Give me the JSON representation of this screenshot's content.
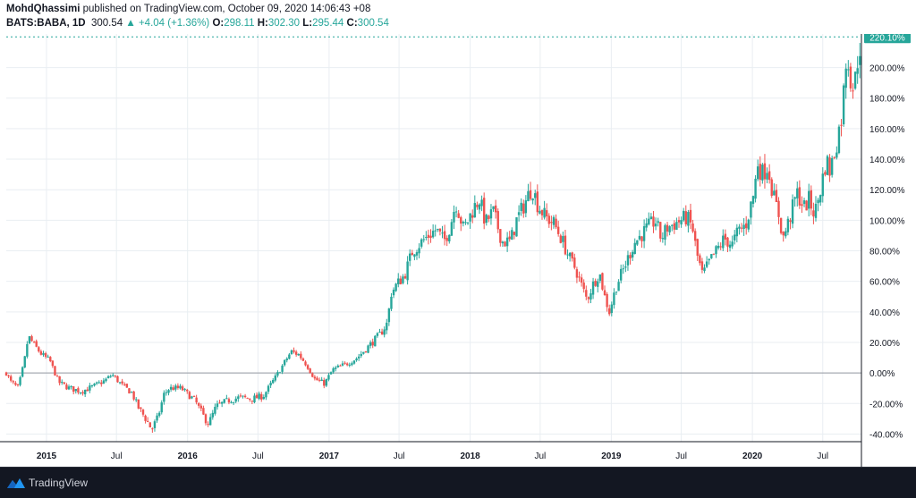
{
  "header": {
    "author": "MohdQhassimi",
    "published": "published on TradingView.com, October 09, 2020 14:06:43 +08",
    "symbol": "BATS:BABA, 1D",
    "last": "300.54",
    "change": "▲ +4.04 (+1.36%)",
    "o_label": "O:",
    "o_value": "298.11",
    "h_label": "H:",
    "h_value": "302.30",
    "l_label": "L:",
    "l_value": "295.44",
    "c_label": "C:",
    "c_value": "300.54"
  },
  "footer": {
    "brand": "TradingView",
    "logo_icon": "tradingview-logo-icon"
  },
  "colors": {
    "up": "#26a69a",
    "down": "#ef5350",
    "grid": "#e9eef2",
    "axis_text": "#131722",
    "badge": "#26a69a",
    "zero_line": "#9598a1"
  },
  "chart_data": {
    "type": "candlestick",
    "y_unit": "percent change",
    "y_axis": {
      "ylim": [
        -45,
        222
      ],
      "ticks": [
        -40,
        -20,
        0,
        20,
        40,
        60,
        80,
        100,
        120,
        140,
        160,
        180,
        200
      ],
      "tick_labels": [
        "-40.00%",
        "-20.00%",
        "0.00%",
        "20.00%",
        "40.00%",
        "60.00%",
        "80.00%",
        "100.00%",
        "120.00%",
        "140.00%",
        "160.00%",
        "180.00%",
        "200.00%"
      ]
    },
    "x_axis": {
      "range": [
        "2014-09-19",
        "2020-10-09"
      ],
      "ticks": [
        {
          "label": "2015",
          "date": "2015-01-01"
        },
        {
          "label": "Jul",
          "date": "2015-07-01"
        },
        {
          "label": "2016",
          "date": "2016-01-01"
        },
        {
          "label": "Jul",
          "date": "2016-07-01"
        },
        {
          "label": "2017",
          "date": "2017-01-01"
        },
        {
          "label": "Jul",
          "date": "2017-07-01"
        },
        {
          "label": "2018",
          "date": "2018-01-01"
        },
        {
          "label": "Jul",
          "date": "2018-07-01"
        },
        {
          "label": "2019",
          "date": "2019-01-01"
        },
        {
          "label": "Jul",
          "date": "2019-07-01"
        },
        {
          "label": "2020",
          "date": "2020-01-01"
        },
        {
          "label": "Jul",
          "date": "2020-07-01"
        }
      ]
    },
    "current_value_label": "220.10%",
    "current_value": 220.1,
    "grid": true,
    "series": [
      {
        "date": "2014-09-19",
        "value": 0
      },
      {
        "date": "2014-10-01",
        "value": -6
      },
      {
        "date": "2014-10-20",
        "value": -10
      },
      {
        "date": "2014-11-05",
        "value": 8
      },
      {
        "date": "2014-11-15",
        "value": 24
      },
      {
        "date": "2014-12-01",
        "value": 18
      },
      {
        "date": "2014-12-20",
        "value": 12
      },
      {
        "date": "2015-01-10",
        "value": 8
      },
      {
        "date": "2015-02-01",
        "value": -6
      },
      {
        "date": "2015-03-01",
        "value": -10
      },
      {
        "date": "2015-04-01",
        "value": -12
      },
      {
        "date": "2015-05-01",
        "value": -9
      },
      {
        "date": "2015-06-01",
        "value": -5
      },
      {
        "date": "2015-06-20",
        "value": -1
      },
      {
        "date": "2015-07-15",
        "value": -8
      },
      {
        "date": "2015-08-10",
        "value": -13
      },
      {
        "date": "2015-08-25",
        "value": -22
      },
      {
        "date": "2015-09-15",
        "value": -30
      },
      {
        "date": "2015-09-30",
        "value": -37
      },
      {
        "date": "2015-10-15",
        "value": -30
      },
      {
        "date": "2015-11-01",
        "value": -14
      },
      {
        "date": "2015-11-15",
        "value": -10
      },
      {
        "date": "2015-12-15",
        "value": -10
      },
      {
        "date": "2016-01-20",
        "value": -18
      },
      {
        "date": "2016-02-10",
        "value": -28
      },
      {
        "date": "2016-02-25",
        "value": -33
      },
      {
        "date": "2016-03-15",
        "value": -22
      },
      {
        "date": "2016-04-15",
        "value": -18
      },
      {
        "date": "2016-05-15",
        "value": -16
      },
      {
        "date": "2016-06-15",
        "value": -17
      },
      {
        "date": "2016-07-15",
        "value": -15
      },
      {
        "date": "2016-08-15",
        "value": -3
      },
      {
        "date": "2016-09-15",
        "value": 10
      },
      {
        "date": "2016-09-25",
        "value": 14
      },
      {
        "date": "2016-10-15",
        "value": 12
      },
      {
        "date": "2016-11-05",
        "value": 5
      },
      {
        "date": "2016-11-25",
        "value": -4
      },
      {
        "date": "2016-12-20",
        "value": -7
      },
      {
        "date": "2017-01-10",
        "value": 2
      },
      {
        "date": "2017-02-15",
        "value": 6
      },
      {
        "date": "2017-03-15",
        "value": 10
      },
      {
        "date": "2017-04-15",
        "value": 18
      },
      {
        "date": "2017-05-15",
        "value": 26
      },
      {
        "date": "2017-06-01",
        "value": 33
      },
      {
        "date": "2017-06-10",
        "value": 52
      },
      {
        "date": "2017-06-25",
        "value": 58
      },
      {
        "date": "2017-07-15",
        "value": 64
      },
      {
        "date": "2017-08-05",
        "value": 80
      },
      {
        "date": "2017-08-25",
        "value": 85
      },
      {
        "date": "2017-09-15",
        "value": 90
      },
      {
        "date": "2017-10-05",
        "value": 94
      },
      {
        "date": "2017-10-25",
        "value": 86
      },
      {
        "date": "2017-11-10",
        "value": 96
      },
      {
        "date": "2017-11-25",
        "value": 112
      },
      {
        "date": "2017-12-15",
        "value": 94
      },
      {
        "date": "2018-01-10",
        "value": 108
      },
      {
        "date": "2018-01-25",
        "value": 114
      },
      {
        "date": "2018-02-10",
        "value": 98
      },
      {
        "date": "2018-03-01",
        "value": 106
      },
      {
        "date": "2018-03-25",
        "value": 86
      },
      {
        "date": "2018-04-15",
        "value": 86
      },
      {
        "date": "2018-05-01",
        "value": 100
      },
      {
        "date": "2018-05-20",
        "value": 110
      },
      {
        "date": "2018-06-10",
        "value": 122
      },
      {
        "date": "2018-06-25",
        "value": 110
      },
      {
        "date": "2018-07-15",
        "value": 102
      },
      {
        "date": "2018-08-05",
        "value": 98
      },
      {
        "date": "2018-08-25",
        "value": 88
      },
      {
        "date": "2018-09-15",
        "value": 75
      },
      {
        "date": "2018-10-01",
        "value": 68
      },
      {
        "date": "2018-10-15",
        "value": 58
      },
      {
        "date": "2018-10-30",
        "value": 48
      },
      {
        "date": "2018-11-15",
        "value": 58
      },
      {
        "date": "2018-12-01",
        "value": 66
      },
      {
        "date": "2018-12-15",
        "value": 50
      },
      {
        "date": "2018-12-27",
        "value": 40
      },
      {
        "date": "2019-01-15",
        "value": 58
      },
      {
        "date": "2019-02-05",
        "value": 70
      },
      {
        "date": "2019-03-01",
        "value": 85
      },
      {
        "date": "2019-04-01",
        "value": 94
      },
      {
        "date": "2019-04-25",
        "value": 100
      },
      {
        "date": "2019-05-10",
        "value": 88
      },
      {
        "date": "2019-05-25",
        "value": 95
      },
      {
        "date": "2019-06-15",
        "value": 98
      },
      {
        "date": "2019-07-15",
        "value": 102
      },
      {
        "date": "2019-07-30",
        "value": 95
      },
      {
        "date": "2019-08-10",
        "value": 78
      },
      {
        "date": "2019-08-25",
        "value": 64
      },
      {
        "date": "2019-09-10",
        "value": 72
      },
      {
        "date": "2019-09-30",
        "value": 80
      },
      {
        "date": "2019-10-20",
        "value": 88
      },
      {
        "date": "2019-11-10",
        "value": 84
      },
      {
        "date": "2019-11-25",
        "value": 93
      },
      {
        "date": "2019-12-15",
        "value": 97
      },
      {
        "date": "2020-01-05",
        "value": 118
      },
      {
        "date": "2020-01-15",
        "value": 138
      },
      {
        "date": "2020-01-25",
        "value": 130
      },
      {
        "date": "2020-02-10",
        "value": 136
      },
      {
        "date": "2020-02-25",
        "value": 115
      },
      {
        "date": "2020-03-10",
        "value": 103
      },
      {
        "date": "2020-03-20",
        "value": 88
      },
      {
        "date": "2020-04-05",
        "value": 100
      },
      {
        "date": "2020-04-25",
        "value": 118
      },
      {
        "date": "2020-05-15",
        "value": 108
      },
      {
        "date": "2020-05-25",
        "value": 114
      },
      {
        "date": "2020-06-10",
        "value": 104
      },
      {
        "date": "2020-06-25",
        "value": 120
      },
      {
        "date": "2020-07-10",
        "value": 140
      },
      {
        "date": "2020-07-20",
        "value": 132
      },
      {
        "date": "2020-08-05",
        "value": 150
      },
      {
        "date": "2020-08-20",
        "value": 170
      },
      {
        "date": "2020-09-01",
        "value": 212
      },
      {
        "date": "2020-09-10",
        "value": 195
      },
      {
        "date": "2020-09-20",
        "value": 185
      },
      {
        "date": "2020-09-30",
        "value": 208
      },
      {
        "date": "2020-10-09",
        "value": 220
      }
    ]
  }
}
